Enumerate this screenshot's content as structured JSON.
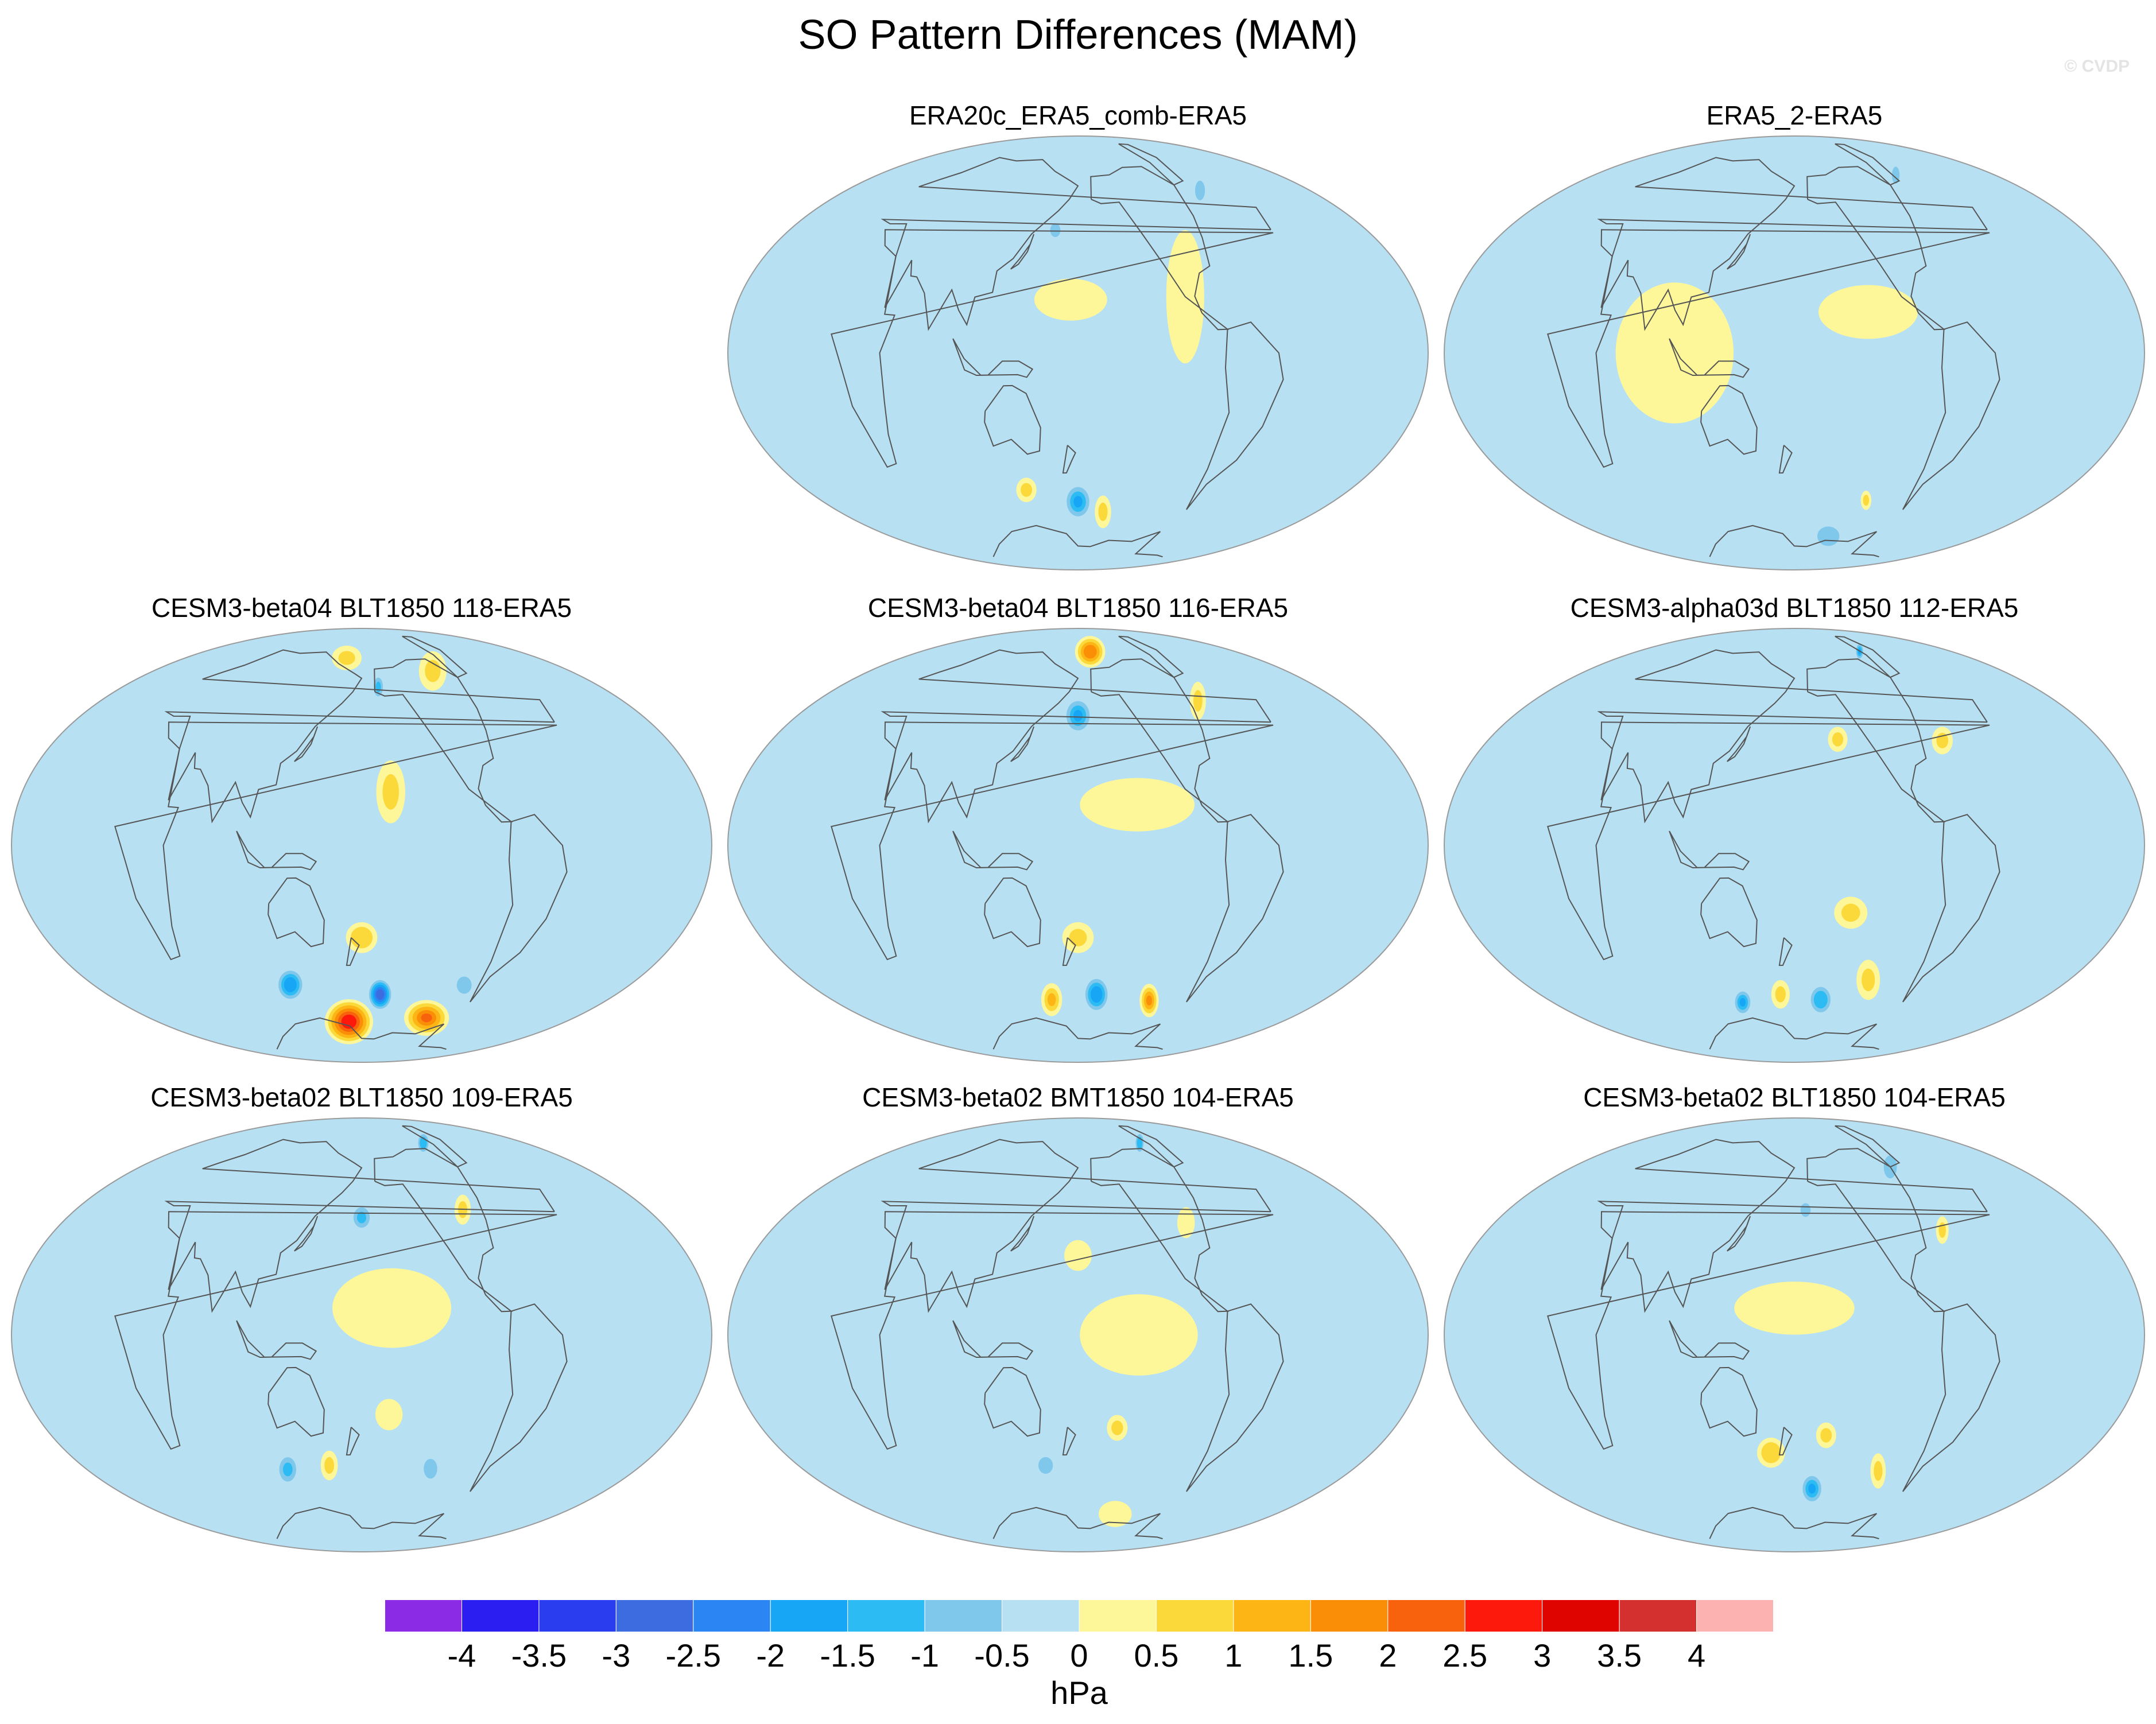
{
  "chart_data": {
    "type": "heatmap",
    "title": "SO Pattern Differences (MAM)",
    "watermark": "© CVDP",
    "projection": "Hammer-Aitoff (global, Pacific-centred)",
    "panels": [
      {
        "title": "ERA20c_ERA5_comb-ERA5",
        "blobs": [
          {
            "lon": 180,
            "lat": -58,
            "value": -1.8,
            "rx": 16,
            "ry": 8
          },
          {
            "lon": 210,
            "lat": -62,
            "value": 1.0,
            "rx": 10,
            "ry": 7
          },
          {
            "lon": 130,
            "lat": -52,
            "value": 0.8,
            "rx": 10,
            "ry": 5
          },
          {
            "lon": 160,
            "lat": 47,
            "value": -1.0,
            "rx": 8,
            "ry": 5
          },
          {
            "lon": 255,
            "lat": 20,
            "value": 0.5,
            "rx": 14,
            "ry": 25
          },
          {
            "lon": 175,
            "lat": 20,
            "value": 0.4,
            "rx": 25,
            "ry": 8
          },
          {
            "lon": 320,
            "lat": 55,
            "value": -0.8,
            "rx": 15,
            "ry": 8
          }
        ]
      },
      {
        "title": "ERA5_2-ERA5",
        "blobs": [
          {
            "lon": 100,
            "lat": 0,
            "value": 0.4,
            "rx": 40,
            "ry": 25
          },
          {
            "lon": 230,
            "lat": 15,
            "value": 0.4,
            "rx": 35,
            "ry": 10
          },
          {
            "lon": 320,
            "lat": 62,
            "value": -1.0,
            "rx": 15,
            "ry": 8
          },
          {
            "lon": 240,
            "lat": -72,
            "value": -0.8,
            "rx": 40,
            "ry": 8
          },
          {
            "lon": 255,
            "lat": -55,
            "value": 0.8,
            "rx": 6,
            "ry": 4
          },
          {
            "lon": 150,
            "lat": -35,
            "value": -0.6,
            "rx": 30,
            "ry": 8
          }
        ]
      },
      {
        "title": "CESM3-beta04 BLT1850 118-ERA5",
        "blobs": [
          {
            "lon": 160,
            "lat": -70,
            "value": 3.2,
            "rx": 38,
            "ry": 10
          },
          {
            "lon": 270,
            "lat": -65,
            "value": 2.5,
            "rx": 40,
            "ry": 8
          },
          {
            "lon": 200,
            "lat": -58,
            "value": -3.2,
            "rx": 14,
            "ry": 7
          },
          {
            "lon": 110,
            "lat": -52,
            "value": -2.2,
            "rx": 15,
            "ry": 7
          },
          {
            "lon": 280,
            "lat": -50,
            "value": -1.0,
            "rx": 15,
            "ry": 6
          },
          {
            "lon": 180,
            "lat": -35,
            "value": 1.2,
            "rx": 12,
            "ry": 6
          },
          {
            "lon": 200,
            "lat": 20,
            "value": 1.0,
            "rx": 10,
            "ry": 12
          },
          {
            "lon": 200,
            "lat": 62,
            "value": -1.4,
            "rx": 8,
            "ry": 6
          },
          {
            "lon": 280,
            "lat": 65,
            "value": 1.0,
            "rx": 25,
            "ry": 10
          },
          {
            "lon": 150,
            "lat": 75,
            "value": 1.0,
            "rx": 30,
            "ry": 6
          }
        ]
      },
      {
        "title": "CESM3-beta04 BLT1850 116-ERA5",
        "blobs": [
          {
            "lon": 210,
            "lat": 78,
            "value": 2.2,
            "rx": 40,
            "ry": 8
          },
          {
            "lon": 180,
            "lat": 50,
            "value": -2.0,
            "rx": 14,
            "ry": 8
          },
          {
            "lon": 150,
            "lat": -60,
            "value": 1.4,
            "rx": 12,
            "ry": 7
          },
          {
            "lon": 200,
            "lat": -58,
            "value": -2.2,
            "rx": 15,
            "ry": 8
          },
          {
            "lon": 260,
            "lat": -58,
            "value": 2.0,
            "rx": 12,
            "ry": 7
          },
          {
            "lon": 180,
            "lat": -35,
            "value": 1.0,
            "rx": 12,
            "ry": 6
          },
          {
            "lon": 300,
            "lat": 50,
            "value": 0.8,
            "rx": 10,
            "ry": 8
          },
          {
            "lon": 220,
            "lat": 15,
            "value": 0.4,
            "rx": 40,
            "ry": 10
          }
        ]
      },
      {
        "title": "CESM3-alpha03d BLT1850 112-ERA5",
        "blobs": [
          {
            "lon": 310,
            "lat": 72,
            "value": -1.8,
            "rx": 15,
            "ry": 6
          },
          {
            "lon": 120,
            "lat": -60,
            "value": -1.8,
            "rx": 12,
            "ry": 6
          },
          {
            "lon": 210,
            "lat": -60,
            "value": -1.7,
            "rx": 15,
            "ry": 7
          },
          {
            "lon": 165,
            "lat": -58,
            "value": 1.0,
            "rx": 10,
            "ry": 6
          },
          {
            "lon": 250,
            "lat": -50,
            "value": 1.0,
            "rx": 12,
            "ry": 8
          },
          {
            "lon": 220,
            "lat": -25,
            "value": 0.8,
            "rx": 12,
            "ry": 6
          },
          {
            "lon": 300,
            "lat": 35,
            "value": 0.8,
            "rx": 10,
            "ry": 5
          },
          {
            "lon": 215,
            "lat": 40,
            "value": 0.8,
            "rx": 8,
            "ry": 5
          }
        ]
      },
      {
        "title": "CESM3-beta02 BLT1850 109-ERA5",
        "blobs": [
          {
            "lon": 300,
            "lat": 72,
            "value": -1.7,
            "rx": 20,
            "ry": 7
          },
          {
            "lon": 180,
            "lat": 45,
            "value": -1.3,
            "rx": 10,
            "ry": 6
          },
          {
            "lon": 110,
            "lat": -50,
            "value": -1.4,
            "rx": 12,
            "ry": 7
          },
          {
            "lon": 150,
            "lat": -50,
            "value": 0.8,
            "rx": 8,
            "ry": 6
          },
          {
            "lon": 200,
            "lat": -30,
            "value": 0.7,
            "rx": 10,
            "ry": 6
          },
          {
            "lon": 245,
            "lat": -50,
            "value": -0.8,
            "rx": 12,
            "ry": 7
          },
          {
            "lon": 270,
            "lat": 45,
            "value": 0.8,
            "rx": 8,
            "ry": 6
          },
          {
            "lon": 200,
            "lat": 10,
            "value": 0.4,
            "rx": 40,
            "ry": 15
          }
        ]
      },
      {
        "title": "CESM3-beta02 BMT1850 104-ERA5",
        "blobs": [
          {
            "lon": 300,
            "lat": 72,
            "value": -1.7,
            "rx": 15,
            "ry": 7
          },
          {
            "lon": 150,
            "lat": -50,
            "value": -0.8,
            "rx": 12,
            "ry": 6
          },
          {
            "lon": 210,
            "lat": -35,
            "value": 0.8,
            "rx": 8,
            "ry": 5
          },
          {
            "lon": 240,
            "lat": -70,
            "value": 0.7,
            "rx": 30,
            "ry": 6
          },
          {
            "lon": 270,
            "lat": 40,
            "value": 0.7,
            "rx": 8,
            "ry": 6
          },
          {
            "lon": 180,
            "lat": 30,
            "value": 0.5,
            "rx": 10,
            "ry": 6
          },
          {
            "lon": 220,
            "lat": 0,
            "value": 0.4,
            "rx": 40,
            "ry": 15
          }
        ]
      },
      {
        "title": "CESM3-beta02 BLT1850 104-ERA5",
        "blobs": [
          {
            "lon": 200,
            "lat": -60,
            "value": -1.8,
            "rx": 14,
            "ry": 7
          },
          {
            "lon": 160,
            "lat": -45,
            "value": 1.2,
            "rx": 12,
            "ry": 6
          },
          {
            "lon": 205,
            "lat": -38,
            "value": 0.8,
            "rx": 8,
            "ry": 5
          },
          {
            "lon": 260,
            "lat": -50,
            "value": 0.8,
            "rx": 8,
            "ry": 7
          },
          {
            "lon": 300,
            "lat": 60,
            "value": -0.8,
            "rx": 20,
            "ry": 10
          },
          {
            "lon": 190,
            "lat": 48,
            "value": -1.0,
            "rx": 8,
            "ry": 5
          },
          {
            "lon": 300,
            "lat": 35,
            "value": 0.8,
            "rx": 6,
            "ry": 5
          },
          {
            "lon": 180,
            "lat": 10,
            "value": 0.4,
            "rx": 40,
            "ry": 10
          }
        ]
      }
    ],
    "colorbar": {
      "label": "hPa",
      "ticks": [
        "-4",
        "-3.5",
        "-3",
        "-2.5",
        "-2",
        "-1.5",
        "-1",
        "-0.5",
        "0",
        "0.5",
        "1",
        "1.5",
        "2",
        "2.5",
        "3",
        "3.5",
        "4"
      ],
      "levels": [
        -4,
        -3.5,
        -3,
        -2.5,
        -2,
        -1.5,
        -1,
        -0.5,
        0,
        0.5,
        1,
        1.5,
        2,
        2.5,
        3,
        3.5,
        4
      ],
      "colors": [
        "#8c2be5",
        "#2b1ef0",
        "#2a3ef0",
        "#3d6be0",
        "#2b85f3",
        "#17a6f6",
        "#2cbcf3",
        "#7fc8ec",
        "#b7e0f3",
        "#fdf79a",
        "#fcd93a",
        "#fcb515",
        "#fb8e07",
        "#f9620d",
        "#fe190d",
        "#df0400",
        "#d4302f",
        "#fdb2b2"
      ]
    }
  }
}
